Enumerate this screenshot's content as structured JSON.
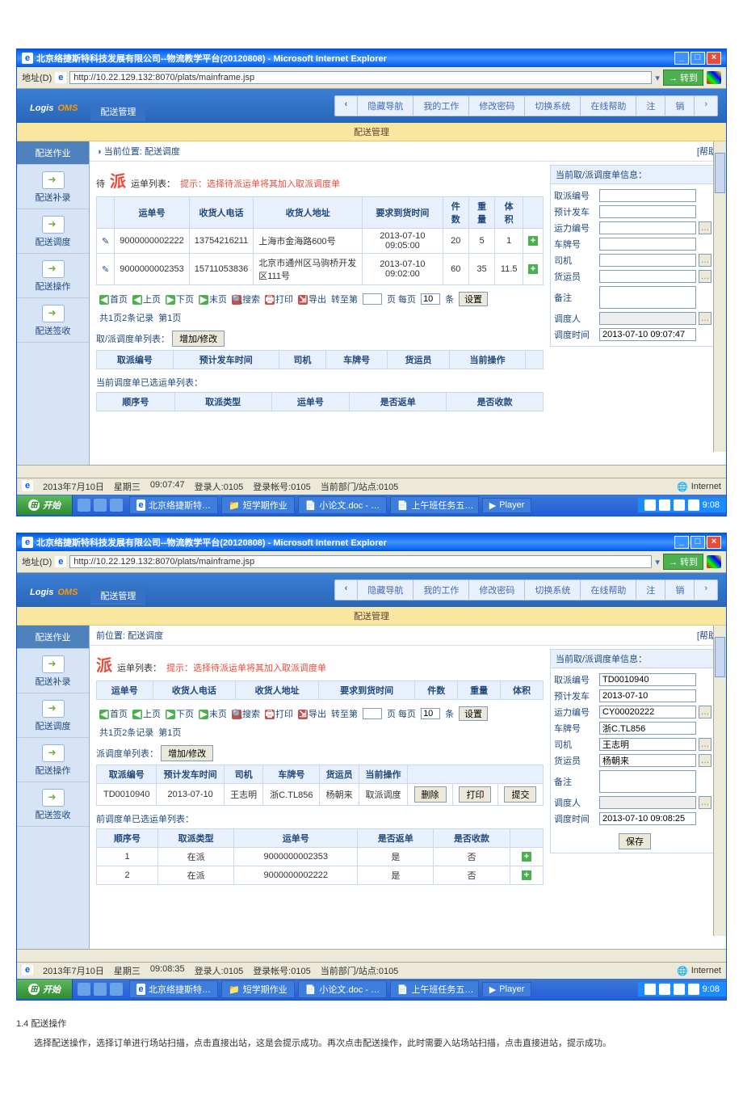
{
  "window": {
    "title": "北京络捷斯特科技发展有限公司--物流教学平台(20120808) - Microsoft Internet Explorer",
    "addr_label": "地址(D)",
    "url": "http://10.22.129.132:8070/plats/mainframe.jsp",
    "go": "转到"
  },
  "header": {
    "logo1": "Logis",
    "logo2": "OMS",
    "tab": "配送管理",
    "nav_prev": "‹",
    "nav_items": [
      "隐藏导航",
      "我的工作",
      "修改密码",
      "切换系统",
      "在线帮助",
      "注",
      "销"
    ],
    "nav_next": "›"
  },
  "subheader": "配送管理",
  "sidebar": {
    "items": [
      {
        "label": "配送作业",
        "active": true,
        "noicon": true
      },
      {
        "label": "配送补录"
      },
      {
        "label": "配送调度"
      },
      {
        "label": "配送操作"
      },
      {
        "label": "配送签收"
      }
    ]
  },
  "sc1": {
    "breadcrumb_icon": "◑",
    "breadcrumb": "当前位置: 配送调度",
    "help": "[帮助]",
    "wait": "待",
    "pai": "派",
    "list_label": "运单列表：",
    "hint": "提示：选择待派运单将其加入取派调度单",
    "table1": {
      "cols": [
        "",
        "运单号",
        "收货人电话",
        "收货人地址",
        "要求到货时间",
        "件数",
        "重量",
        "体积",
        ""
      ],
      "rows": [
        [
          "✎",
          "9000000002222",
          "13754216211",
          "上海市金海路600号",
          "2013-07-10 09:05:00",
          "20",
          "5",
          "1",
          "+"
        ],
        [
          "✎",
          "9000000002353",
          "15711053836",
          "北京市通州区马驹桥开发区111号",
          "2013-07-10 09:02:00",
          "60",
          "35",
          "11.5",
          "+"
        ]
      ]
    },
    "pager": {
      "first": "首页",
      "prev": "上页",
      "next": "下页",
      "last": "末页",
      "search": "搜索",
      "print": "打印",
      "export": "导出",
      "jump": "转至第",
      "page_sfx": "页 每页",
      "per": "10",
      "unit": "条",
      "set": "设置",
      "total": "共1页2条记录",
      "cur": "第1页"
    },
    "sec2_label": "取/派调度单列表：",
    "addmod": "增加/修改",
    "table2_cols": [
      "取派编号",
      "预计发车时间",
      "司机",
      "车牌号",
      "货运员",
      "当前操作",
      ""
    ],
    "sec3_label": "当前调度单已选运单列表：",
    "table3_cols": [
      "顺序号",
      "取派类型",
      "运单号",
      "是否返单",
      "是否收款"
    ],
    "panel_header": "当前取/派调度单信息：",
    "panel_fields": [
      {
        "l": "取派编号",
        "v": "",
        "pick": false
      },
      {
        "l": "预计发车",
        "v": "",
        "pick": false
      },
      {
        "l": "运力编号",
        "v": "",
        "pick": true
      },
      {
        "l": "车牌号",
        "v": "",
        "pick": false
      },
      {
        "l": "司机",
        "v": "",
        "pick": true
      },
      {
        "l": "货运员",
        "v": "",
        "pick": true
      },
      {
        "l": "备注",
        "v": "",
        "ta": true
      },
      {
        "l": "调度人",
        "v": "",
        "pick": true,
        "dis": true
      },
      {
        "l": "调度时间",
        "v": "2013-07-10 09:07:47",
        "pick": false
      }
    ]
  },
  "sc2": {
    "breadcrumb": "前位置: 配送调度",
    "help": "[帮助]",
    "pai": "派",
    "list_label": "运单列表：",
    "hint": "提示：选择待派运单将其加入取派调度单",
    "table1": {
      "cols": [
        "运单号",
        "收货人电话",
        "收货人地址",
        "要求到货时间",
        "件数",
        "重量",
        "体积"
      ]
    },
    "pager": {
      "first": "首页",
      "prev": "上页",
      "next": "下页",
      "last": "末页",
      "search": "搜索",
      "print": "打印",
      "export": "导出",
      "jump": "转至第",
      "page_sfx": "页 每页",
      "per": "10",
      "unit": "条",
      "set": "设置",
      "total": "共1页2条记录",
      "cur": "第1页"
    },
    "sec2_label": "派调度单列表：",
    "addmod": "增加/修改",
    "table2": {
      "cols": [
        "取派编号",
        "预计发车时间",
        "司机",
        "车牌号",
        "货运员",
        "当前操作"
      ],
      "rows": [
        [
          "TD0010940",
          "2013-07-10",
          "王志明",
          "浙C.TL856",
          "杨朝来",
          "取派调度"
        ]
      ],
      "btns": [
        "删除",
        "打印",
        "提交"
      ]
    },
    "sec3_label": "前调度单已选运单列表：",
    "table3": {
      "cols": [
        "顺序号",
        "取派类型",
        "运单号",
        "是否返单",
        "是否收款",
        ""
      ],
      "rows": [
        [
          "1",
          "在派",
          "9000000002353",
          "是",
          "否",
          "+"
        ],
        [
          "2",
          "在派",
          "9000000002222",
          "是",
          "否",
          "+"
        ]
      ]
    },
    "panel_header": "当前取/派调度单信息：",
    "panel_fields": [
      {
        "l": "取派编号",
        "v": "TD0010940"
      },
      {
        "l": "预计发车",
        "v": "2013-07-10"
      },
      {
        "l": "运力编号",
        "v": "CY00020222",
        "pick": true
      },
      {
        "l": "车牌号",
        "v": "浙C.TL856"
      },
      {
        "l": "司机",
        "v": "王志明",
        "pick": true
      },
      {
        "l": "货运员",
        "v": "杨朝来",
        "pick": true
      },
      {
        "l": "备注",
        "v": "",
        "ta": true
      },
      {
        "l": "调度人",
        "v": "",
        "pick": true,
        "dis": true
      },
      {
        "l": "调度时间",
        "v": "2013-07-10 09:08:25"
      }
    ],
    "save": "保存"
  },
  "status1": {
    "date": "2013年7月10日",
    "wd": "星期三",
    "time": "09:07:47",
    "login": "登录人:0105",
    "acct": "登录帐号:0105",
    "dept": "当前部门/站点:0105",
    "net": "Internet"
  },
  "status2": {
    "date": "2013年7月10日",
    "wd": "星期三",
    "time": "09:08:35",
    "login": "登录人:0105",
    "acct": "登录帐号:0105",
    "dept": "当前部门/站点:0105",
    "net": "Internet"
  },
  "taskbar1": {
    "start": "开始",
    "tasks": [
      "北京络捷斯特…",
      "短学期作业",
      "小论文.doc - …",
      "上午班任务五…",
      "Player"
    ],
    "clock": "9:08"
  },
  "taskbar2": {
    "start": "开始",
    "tasks": [
      "北京络捷斯特…",
      "短学期作业",
      "小论文.doc - …",
      "上午班任务五…",
      "Player"
    ],
    "clock": "9:08"
  },
  "doc": {
    "h": "1.4 配送操作",
    "p": "选择配送操作，选择订单进行场站扫描，点击直接出站，这是会提示成功。再次点击配送操作，此时需要入站场站扫描，点击直接进站，提示成功。"
  },
  "colors": {
    "titlebar": "#0058e6",
    "accent": "#4f81bd",
    "warn": "#e74c3c"
  }
}
